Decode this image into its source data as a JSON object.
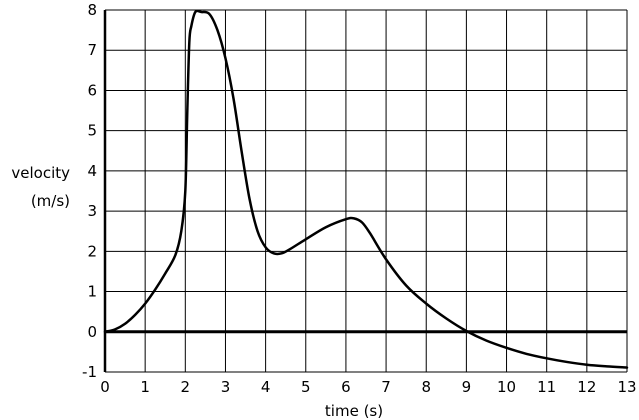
{
  "chart_data": {
    "type": "line",
    "xlabel": "time (s)",
    "ylabel": [
      "velocity",
      "(m/s)"
    ],
    "xlim": [
      0,
      13
    ],
    "ylim": [
      -1,
      8
    ],
    "xticks": [
      0,
      1,
      2,
      3,
      4,
      5,
      6,
      7,
      8,
      9,
      10,
      11,
      12,
      13
    ],
    "yticks": [
      -1,
      0,
      1,
      2,
      3,
      4,
      5,
      6,
      7,
      8
    ],
    "grid": true,
    "series": [
      {
        "color": "#000000",
        "x": [
          0,
          0.25,
          0.5,
          0.75,
          1.0,
          1.25,
          1.5,
          1.75,
          1.9,
          2.0,
          2.05,
          2.1,
          2.15,
          2.25,
          2.4,
          2.6,
          2.8,
          3.0,
          3.2,
          3.4,
          3.6,
          3.8,
          4.0,
          4.2,
          4.4,
          4.6,
          5.0,
          5.5,
          6.0,
          6.2,
          6.4,
          6.6,
          7.0,
          7.5,
          8.0,
          8.5,
          9.0,
          9.5,
          10.0,
          10.5,
          11.0,
          11.5,
          12.0,
          12.5,
          13.0
        ],
        "values": [
          0,
          0.06,
          0.2,
          0.42,
          0.7,
          1.05,
          1.45,
          1.9,
          2.5,
          3.5,
          5.5,
          7.2,
          7.6,
          7.95,
          7.95,
          7.9,
          7.5,
          6.8,
          5.8,
          4.5,
          3.3,
          2.5,
          2.1,
          1.95,
          1.95,
          2.05,
          2.3,
          2.6,
          2.8,
          2.82,
          2.72,
          2.45,
          1.8,
          1.15,
          0.7,
          0.33,
          0.02,
          -0.22,
          -0.4,
          -0.55,
          -0.66,
          -0.75,
          -0.82,
          -0.86,
          -0.89
        ]
      }
    ]
  }
}
